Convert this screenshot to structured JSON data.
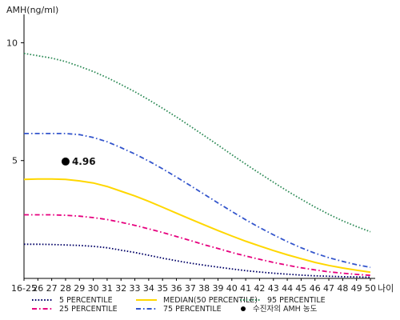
{
  "chart_data": {
    "type": "line",
    "ylabel": "AMH(ng/ml)",
    "xlabel": "나이",
    "x": [
      "16-25",
      "26",
      "27",
      "28",
      "29",
      "30",
      "31",
      "32",
      "33",
      "34",
      "35",
      "36",
      "37",
      "38",
      "39",
      "40",
      "41",
      "42",
      "43",
      "44",
      "45",
      "46",
      "47",
      "48",
      "49",
      "50"
    ],
    "yticks": [
      "5",
      "10"
    ],
    "ylim": [
      0,
      11
    ],
    "series": [
      {
        "name": "5 PERCENTILE",
        "color": "#000066",
        "dash": "dotted",
        "values": [
          1.45,
          1.45,
          1.44,
          1.42,
          1.4,
          1.36,
          1.3,
          1.2,
          1.1,
          0.98,
          0.86,
          0.75,
          0.65,
          0.56,
          0.48,
          0.4,
          0.33,
          0.27,
          0.22,
          0.18,
          0.14,
          0.11,
          0.09,
          0.07,
          0.06,
          0.05
        ]
      },
      {
        "name": "25 PERCENTILE",
        "color": "#e6007e",
        "dash": "dashdot",
        "values": [
          2.7,
          2.7,
          2.7,
          2.68,
          2.64,
          2.58,
          2.5,
          2.38,
          2.25,
          2.1,
          1.95,
          1.78,
          1.61,
          1.43,
          1.27,
          1.1,
          0.95,
          0.81,
          0.68,
          0.56,
          0.45,
          0.36,
          0.28,
          0.22,
          0.17,
          0.13
        ]
      },
      {
        "name": "MEDIAN(50 PERCENTILE)",
        "color": "#ffd700",
        "dash": "solid",
        "values": [
          4.2,
          4.22,
          4.22,
          4.2,
          4.14,
          4.05,
          3.9,
          3.7,
          3.5,
          3.27,
          3.02,
          2.77,
          2.52,
          2.27,
          2.03,
          1.8,
          1.58,
          1.38,
          1.18,
          1.0,
          0.84,
          0.68,
          0.55,
          0.44,
          0.35,
          0.26
        ]
      },
      {
        "name": "75 PERCENTILE",
        "color": "#3355cc",
        "dash": "dashdot",
        "values": [
          6.15,
          6.15,
          6.15,
          6.15,
          6.1,
          5.98,
          5.8,
          5.55,
          5.28,
          4.98,
          4.65,
          4.3,
          3.94,
          3.57,
          3.2,
          2.84,
          2.49,
          2.16,
          1.85,
          1.56,
          1.3,
          1.07,
          0.88,
          0.72,
          0.58,
          0.47
        ]
      },
      {
        "name": "95 PERCENTILE",
        "color": "#2e8b57",
        "dash": "dotted",
        "values": [
          9.55,
          9.45,
          9.35,
          9.2,
          9.0,
          8.78,
          8.52,
          8.23,
          7.92,
          7.58,
          7.22,
          6.85,
          6.46,
          6.06,
          5.66,
          5.25,
          4.85,
          4.46,
          4.08,
          3.71,
          3.36,
          3.03,
          2.72,
          2.44,
          2.2,
          1.98
        ]
      }
    ],
    "point": {
      "name": "수진자의 AMH 농도",
      "x": "28",
      "y": 4.96,
      "label": "4.96"
    },
    "legend": [
      {
        "name": "5 PERCENTILE",
        "color": "#000066",
        "dash": "dotted"
      },
      {
        "name": "25 PERCENTILE",
        "color": "#e6007e",
        "dash": "dashdot"
      },
      {
        "name": "MEDIAN(50 PERCENTILE)",
        "color": "#ffd700",
        "dash": "solid"
      },
      {
        "name": "75 PERCENTILE",
        "color": "#3355cc",
        "dash": "dashdot"
      },
      {
        "name": "95 PERCENTILE",
        "color": "#2e8b57",
        "dash": "dotted"
      },
      {
        "name": "수진자의 AMH 농도",
        "color": "#000000",
        "dash": "marker"
      }
    ],
    "legend_placement": "bottom",
    "grid": false
  }
}
